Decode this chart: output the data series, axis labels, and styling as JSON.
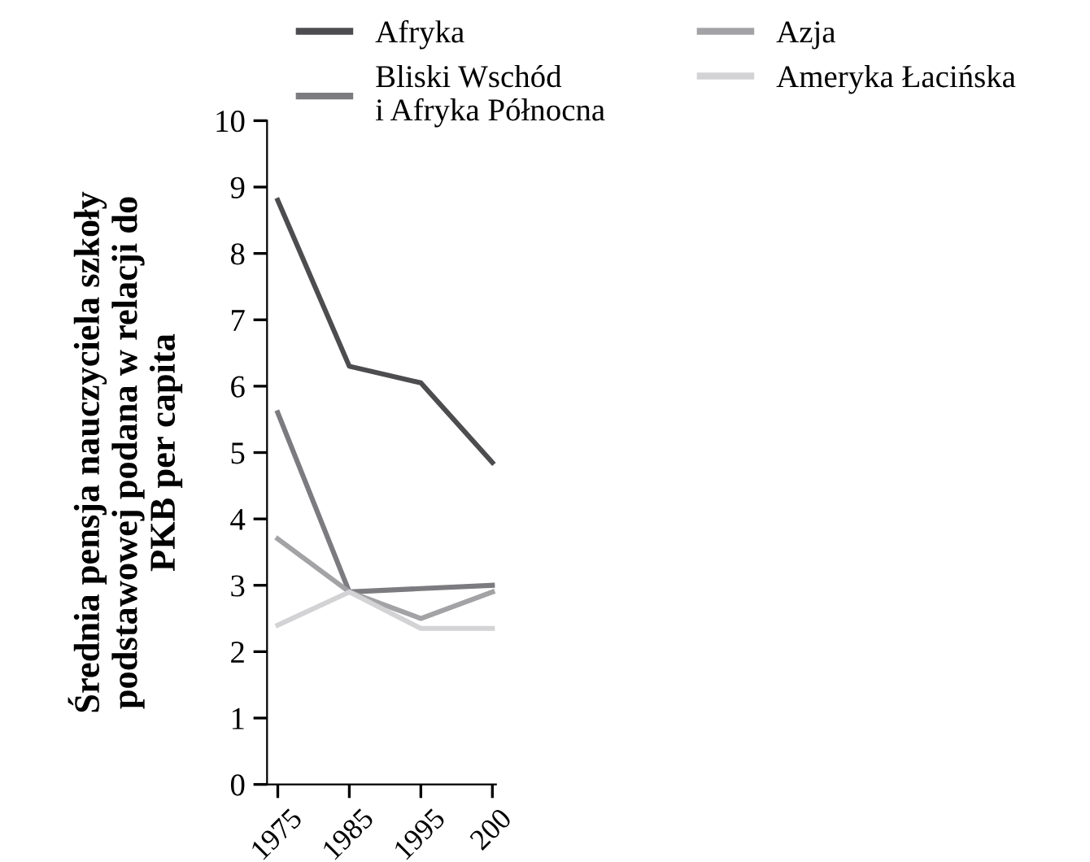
{
  "chart_data": {
    "type": "line",
    "ylabel": "Średnia pensja nauczyciela szkoły\npodstawowej podana w relacji do\nPKB per capita",
    "categories": [
      "1975",
      "1985",
      "1995",
      "200"
    ],
    "series": [
      {
        "name": "Afryka",
        "color": "#4d4d4f",
        "values": [
          8.8,
          6.3,
          6.05,
          4.85
        ]
      },
      {
        "name": "Bliski Wschód\ni Afryka Północna",
        "color": "#7c7c80",
        "values": [
          5.6,
          2.9,
          2.95,
          3.0
        ]
      },
      {
        "name": "Azja",
        "color": "#a3a3a6",
        "values": [
          3.7,
          2.9,
          2.5,
          2.9
        ]
      },
      {
        "name": "Ameryka Łacińska",
        "color": "#d3d3d5",
        "values": [
          2.4,
          2.9,
          2.35,
          2.35
        ]
      }
    ],
    "ylim": [
      0,
      10
    ],
    "yticks": [
      0,
      1,
      2,
      3,
      4,
      5,
      6,
      7,
      8,
      9,
      10
    ],
    "grid": false,
    "legend": "top",
    "marker": "none",
    "line_style": "solid"
  }
}
